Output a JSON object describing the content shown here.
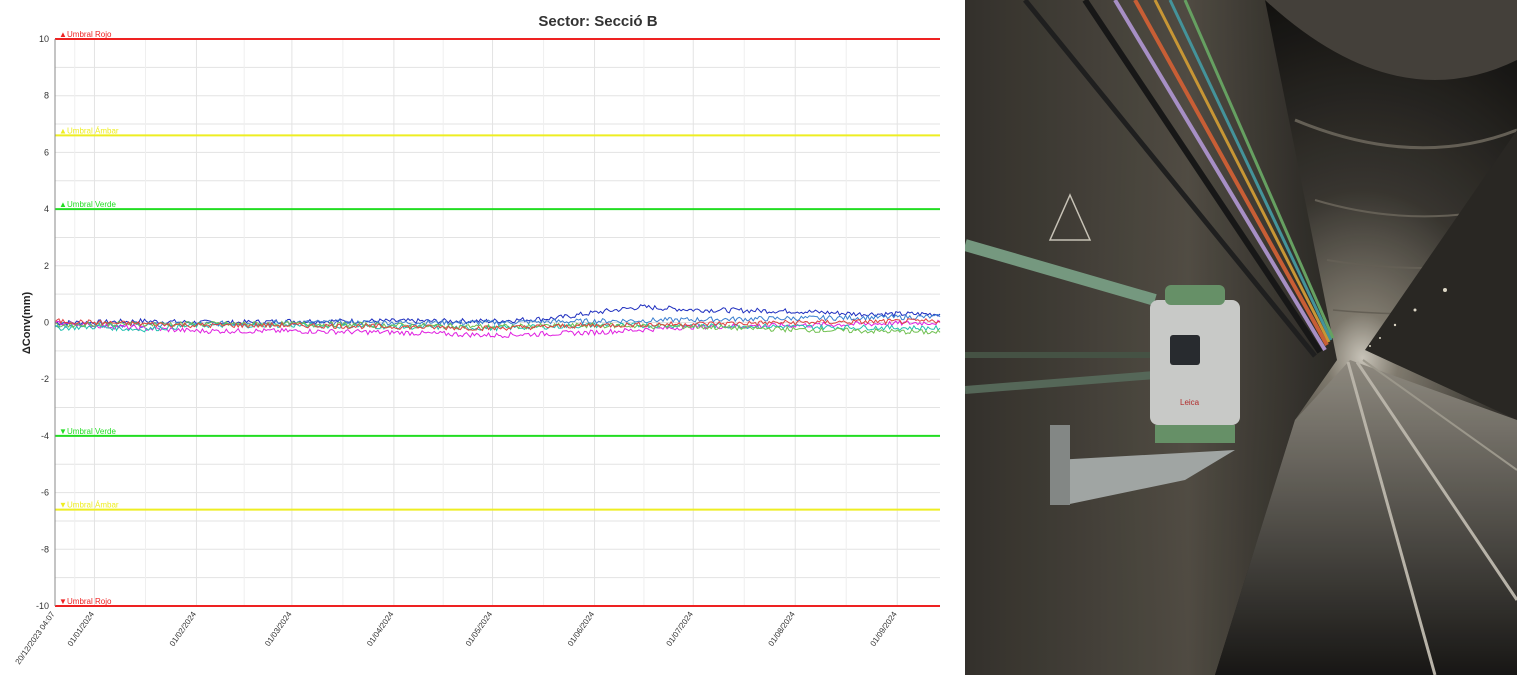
{
  "chart_data": {
    "type": "line",
    "title": "Sector: Secció B",
    "ylabel": "ΔConv(mm)",
    "xlabel": "",
    "ylim": [
      -10,
      10
    ],
    "yticks": [
      10,
      8,
      6,
      4,
      2,
      0,
      -2,
      -4,
      -6,
      -8,
      -10
    ],
    "x_tick_labels": [
      "20/12/2023 04:07",
      "01/01/2024",
      "01/02/2024",
      "01/03/2024",
      "01/04/2024",
      "01/05/2024",
      "01/06/2024",
      "01/07/2024",
      "01/08/2024",
      "01/09/2024"
    ],
    "x_range": [
      "20/12/2023",
      "14/09/2024"
    ],
    "grid": true,
    "legend": "none",
    "thresholds": [
      {
        "label": "Umbral Rojo",
        "value": 10,
        "color": "#ee2222",
        "marker": "▲"
      },
      {
        "label": "Umbral Ámbar",
        "value": 6.6,
        "color": "#eeee22",
        "marker": "▲"
      },
      {
        "label": "Umbral Verde",
        "value": 4,
        "color": "#22dd22",
        "marker": "▲"
      },
      {
        "label": "Umbral Verde",
        "value": -4,
        "color": "#22dd22",
        "marker": "▼"
      },
      {
        "label": "Umbral Ámbar",
        "value": -6.6,
        "color": "#eeee22",
        "marker": "▼"
      },
      {
        "label": "Umbral Rojo",
        "value": -10,
        "color": "#ee2222",
        "marker": "▼"
      }
    ],
    "series": [
      {
        "color": "#1f2fbf",
        "x": [
          "20/12/2023",
          "01/01/2024",
          "15/01/2024",
          "01/02/2024",
          "15/02/2024",
          "01/03/2024",
          "01/04/2024",
          "01/05/2024",
          "20/05/2024",
          "01/06/2024",
          "15/06/2024",
          "01/07/2024",
          "01/08/2024",
          "20/08/2024",
          "14/09/2024"
        ],
        "y": [
          0.0,
          0.0,
          0.05,
          0.0,
          0.0,
          0.05,
          0.05,
          0.05,
          0.15,
          0.35,
          0.55,
          0.45,
          0.4,
          0.3,
          0.3
        ]
      },
      {
        "color": "#3a7fd0",
        "x": [
          "20/12/2023",
          "01/01/2024",
          "15/01/2024",
          "01/02/2024",
          "01/03/2024",
          "01/04/2024",
          "01/05/2024",
          "01/06/2024",
          "01/07/2024",
          "01/08/2024",
          "14/09/2024"
        ],
        "y": [
          -0.1,
          -0.05,
          -0.1,
          -0.05,
          0.0,
          0.0,
          0.0,
          0.05,
          0.1,
          0.15,
          0.2
        ]
      },
      {
        "color": "#e020e0",
        "x": [
          "20/12/2023",
          "01/01/2024",
          "15/01/2024",
          "01/02/2024",
          "01/03/2024",
          "01/04/2024",
          "01/05/2024",
          "01/06/2024",
          "01/07/2024",
          "01/08/2024",
          "14/09/2024"
        ],
        "y": [
          0.0,
          -0.1,
          -0.2,
          -0.3,
          -0.3,
          -0.35,
          -0.45,
          -0.35,
          -0.15,
          -0.1,
          0.0
        ]
      },
      {
        "color": "#20c0b0",
        "x": [
          "20/12/2023",
          "01/01/2024",
          "15/01/2024",
          "01/02/2024",
          "01/03/2024",
          "01/04/2024",
          "01/05/2024",
          "01/06/2024",
          "01/07/2024",
          "01/08/2024",
          "14/09/2024"
        ],
        "y": [
          -0.2,
          -0.15,
          -0.25,
          -0.1,
          -0.1,
          -0.15,
          -0.2,
          -0.1,
          -0.1,
          -0.15,
          -0.2
        ]
      },
      {
        "color": "#70c050",
        "x": [
          "20/12/2023",
          "01/01/2024",
          "01/02/2024",
          "01/03/2024",
          "01/04/2024",
          "01/05/2024",
          "01/06/2024",
          "01/07/2024",
          "01/08/2024",
          "14/09/2024"
        ],
        "y": [
          -0.1,
          -0.05,
          -0.05,
          -0.05,
          -0.1,
          -0.15,
          -0.1,
          -0.15,
          -0.25,
          -0.35
        ]
      },
      {
        "color": "#e04040",
        "x": [
          "20/12/2023",
          "01/01/2024",
          "01/02/2024",
          "01/03/2024",
          "01/04/2024",
          "01/05/2024",
          "01/06/2024",
          "01/07/2024",
          "01/08/2024",
          "14/09/2024"
        ],
        "y": [
          0.05,
          0.0,
          -0.1,
          -0.1,
          -0.15,
          -0.2,
          -0.1,
          -0.05,
          0.0,
          0.05
        ]
      }
    ]
  },
  "photo": {
    "description_icon": "tunnel-photo"
  },
  "colors": {
    "grid": "#e3e3e3",
    "axis": "#888888"
  }
}
